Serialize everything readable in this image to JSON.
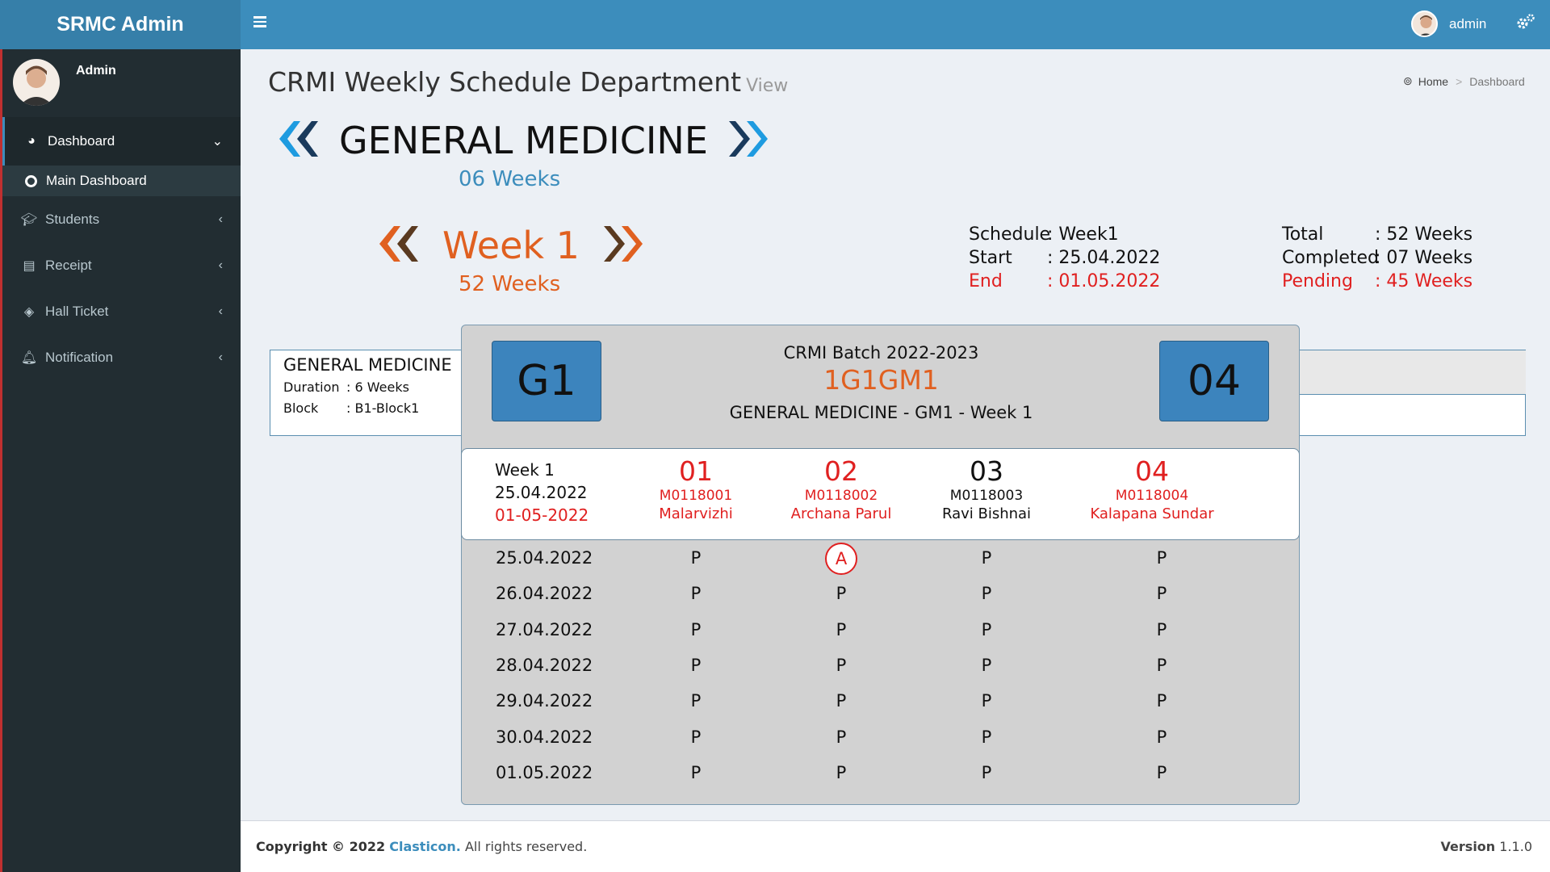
{
  "header": {
    "app_title": "SRMC Admin",
    "user_name": "admin"
  },
  "sidebar": {
    "user_name": "Admin",
    "items": [
      {
        "label": "Dashboard",
        "icon": "pie-chart-icon"
      },
      {
        "label": "Main Dashboard",
        "icon": "circle-icon"
      },
      {
        "label": "Students",
        "icon": "graduation-cap-icon"
      },
      {
        "label": "Receipt",
        "icon": "receipt-icon"
      },
      {
        "label": "Hall Ticket",
        "icon": "ticket-icon"
      },
      {
        "label": "Notification",
        "icon": "bell-icon"
      }
    ]
  },
  "page": {
    "title": "CRMI Weekly Schedule Department",
    "title_small": "View",
    "breadcrumb": {
      "home": "Home",
      "current": "Dashboard"
    }
  },
  "department": {
    "name": "GENERAL MEDICINE",
    "weeks": "06 Weeks"
  },
  "week": {
    "name": "Week 1",
    "total": "52 Weeks"
  },
  "schedule_info": {
    "schedule_label": "Schedule",
    "schedule_value": ": Week1",
    "start_label": "Start",
    "start_value": ": 25.04.2022",
    "end_label": "End",
    "end_value": ": 01.05.2022"
  },
  "totals_info": {
    "total_label": "Total",
    "total_value": ": 52 Weeks",
    "completed_label": "Completed",
    "completed_value": ": 07 Weeks",
    "pending_label": "Pending",
    "pending_value": ": 45 Weeks"
  },
  "bg_card": {
    "title": "GENERAL MEDICINE",
    "duration_label": "Duration",
    "duration_value": ": 6 Weeks",
    "block_label": "Block",
    "block_value": ": B1-Block1"
  },
  "modal": {
    "group_tile": "G1",
    "count_tile": "04",
    "batch": "CRMI Batch 2022-2023",
    "code": "1G1GM1",
    "subtitle": "GENERAL MEDICINE - GM1 - Week 1",
    "week_label": "Week 1",
    "week_start": "25.04.2022",
    "week_end": "01-05-2022",
    "students": [
      {
        "num": "01",
        "id": "M0118001",
        "name": "Malarvizhi"
      },
      {
        "num": "02",
        "id": "M0118002",
        "name": "Archana Parul"
      },
      {
        "num": "03",
        "id": "M0118003",
        "name": "Ravi Bishnai"
      },
      {
        "num": "04",
        "id": "M0118004",
        "name": "Kalapana Sundar"
      }
    ],
    "attendance": [
      {
        "date": "25.04.2022",
        "marks": [
          "P",
          "A",
          "P",
          "P"
        ]
      },
      {
        "date": "26.04.2022",
        "marks": [
          "P",
          "P",
          "P",
          "P"
        ]
      },
      {
        "date": "27.04.2022",
        "marks": [
          "P",
          "P",
          "P",
          "P"
        ]
      },
      {
        "date": "28.04.2022",
        "marks": [
          "P",
          "P",
          "P",
          "P"
        ]
      },
      {
        "date": "29.04.2022",
        "marks": [
          "P",
          "P",
          "P",
          "P"
        ]
      },
      {
        "date": "30.04.2022",
        "marks": [
          "P",
          "P",
          "P",
          "P"
        ]
      },
      {
        "date": "01.05.2022",
        "marks": [
          "P",
          "P",
          "P",
          "P"
        ]
      }
    ]
  },
  "footer": {
    "copyright": "Copyright © 2022",
    "brand": "Clasticon.",
    "rights": "All rights reserved.",
    "version_label": "Version",
    "version_value": "1.1.0"
  },
  "colors": {
    "header": "#3c8dbc",
    "sidebar": "#222d32",
    "accent_orange": "#e06020",
    "alert_red": "#e02020",
    "tile_blue": "#3c84bd"
  }
}
